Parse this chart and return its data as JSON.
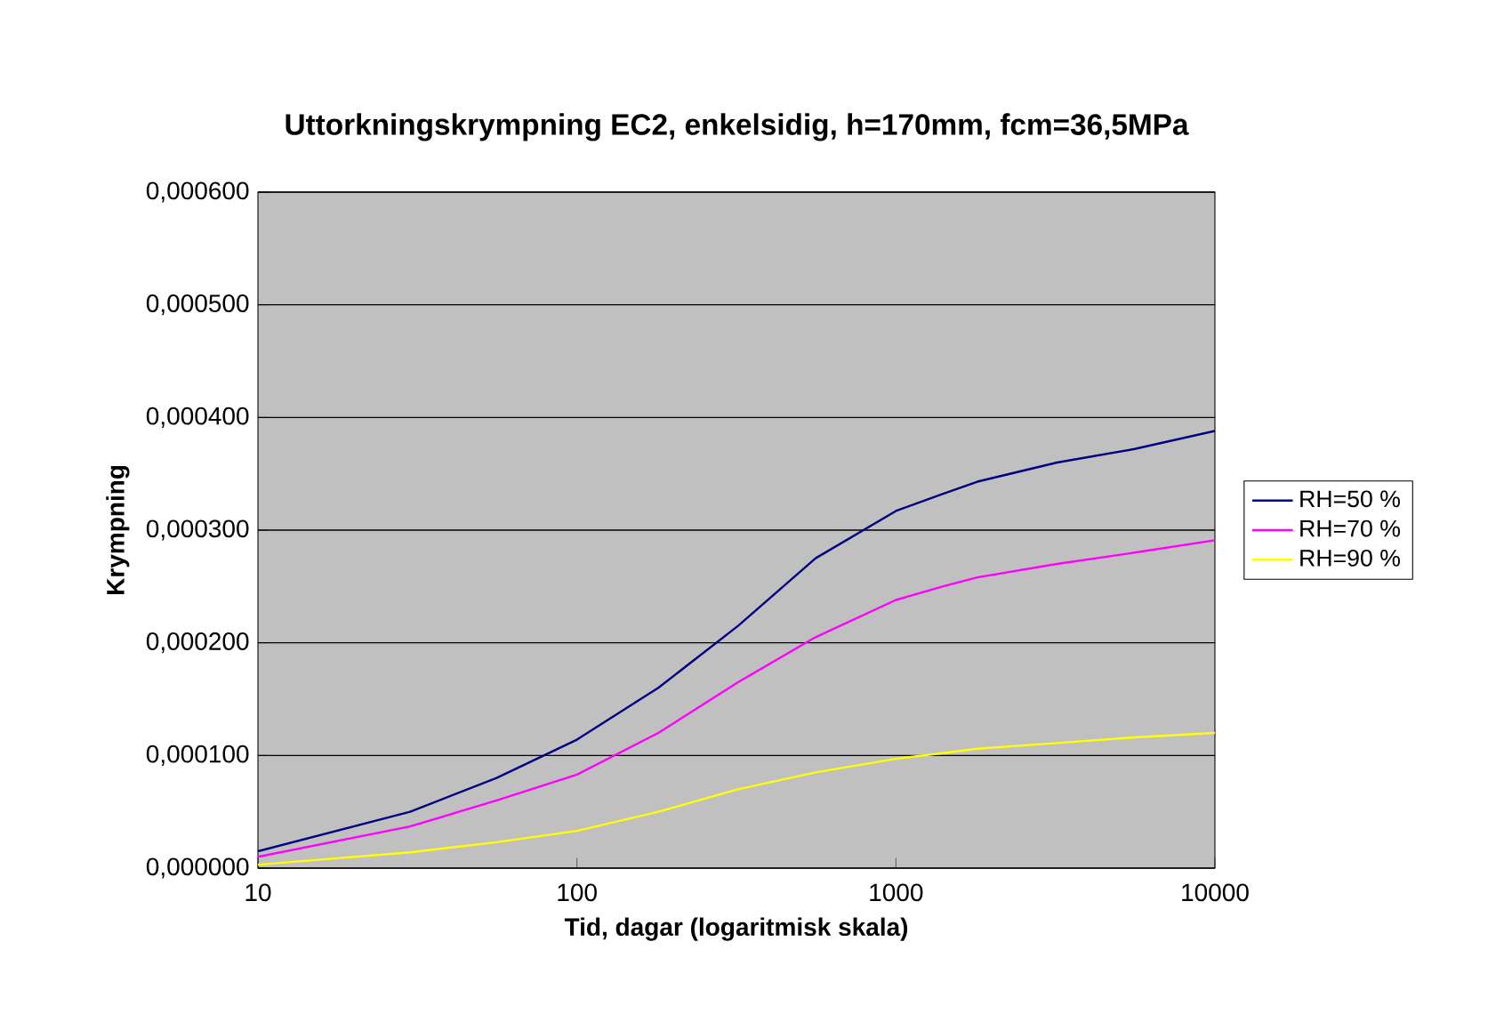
{
  "chart_data": {
    "type": "line",
    "title": "Uttorkningskrympning EC2, enkelsidig, h=170mm, fcm=36,5MPa",
    "xlabel": "Tid, dagar (logaritmisk skala)",
    "ylabel": "Krympning",
    "x": [
      10,
      30,
      56,
      100,
      180,
      320,
      560,
      1000,
      1400,
      1800,
      3200,
      5600,
      10000
    ],
    "series": [
      {
        "name": "RH=50 %",
        "color": "#000080",
        "values": [
          1.5e-05,
          5e-05,
          8e-05,
          0.000114,
          0.00016,
          0.000215,
          0.000275,
          0.000317,
          0.000332,
          0.000343,
          0.00036,
          0.000372,
          0.000388
        ]
      },
      {
        "name": "RH=70 %",
        "color": "#ff00ff",
        "values": [
          1e-05,
          3.7e-05,
          6e-05,
          8.3e-05,
          0.00012,
          0.000165,
          0.000205,
          0.000238,
          0.00025,
          0.000258,
          0.00027,
          0.00028,
          0.000291
        ]
      },
      {
        "name": "RH=90 %",
        "color": "#ffff00",
        "values": [
          3e-06,
          1.4e-05,
          2.3e-05,
          3.3e-05,
          5e-05,
          7e-05,
          8.5e-05,
          9.7e-05,
          0.000102,
          0.000106,
          0.000111,
          0.000116,
          0.00012
        ]
      }
    ],
    "log": "x",
    "xlim": [
      10,
      10000
    ],
    "xticks": [
      10,
      100,
      1000,
      10000
    ],
    "ylim": [
      0,
      0.0006
    ],
    "yticks": [
      {
        "value": 0,
        "label": "0,000000"
      },
      {
        "value": 0.0001,
        "label": "0,000100"
      },
      {
        "value": 0.0002,
        "label": "0,000200"
      },
      {
        "value": 0.0003,
        "label": "0,000300"
      },
      {
        "value": 0.0004,
        "label": "0,000400"
      },
      {
        "value": 0.0005,
        "label": "0,000500"
      },
      {
        "value": 0.0006,
        "label": "0,000600"
      }
    ],
    "grid": "y",
    "legend": "right",
    "marker": "none",
    "line_style": "solid"
  }
}
